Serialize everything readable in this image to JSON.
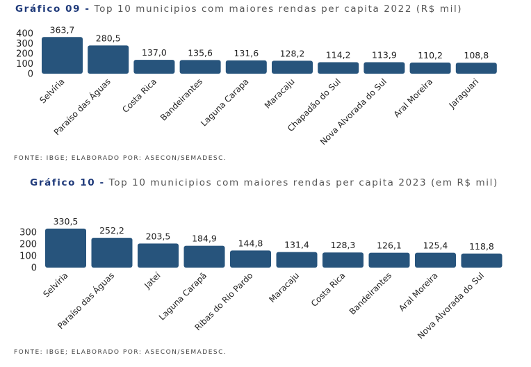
{
  "colors": {
    "bar": "#27547c",
    "title_prefix": "#1f3a7a",
    "text": "#333333"
  },
  "chart_data": [
    {
      "type": "bar",
      "title_prefix": "Gráfico 09 -",
      "title": "Top 10 municipios com maiores rendas per capita 2022 (R$ mil)",
      "categories": [
        "Selvíria",
        "Paraíso das Águas",
        "Costa Rica",
        "Bandeirantes",
        "Laguna Carapa",
        "Maracaju",
        "Chapadão do Sul",
        "Nova Alvorada do Sul",
        "Aral Moreira",
        "Jaraguari"
      ],
      "values": [
        363.7,
        280.5,
        137.0,
        135.6,
        131.6,
        128.2,
        114.2,
        113.9,
        110.2,
        108.8
      ],
      "data_labels": [
        "363,7",
        "280,5",
        "137,0",
        "135,6",
        "131,6",
        "128,2",
        "114,2",
        "113,9",
        "110,2",
        "108,8"
      ],
      "yticks": [
        "0",
        "100",
        "200",
        "300",
        "400"
      ],
      "ylim": [
        0,
        400
      ],
      "grid": false,
      "source": "FONTE: IBGE; ELABORADO POR: ASECON/SEMADESC."
    },
    {
      "type": "bar",
      "title_prefix": "Gráfico 10 -",
      "title": "Top 10 municipios com maiores rendas per capita 2023 (em R$ mil)",
      "categories": [
        "Selvíria",
        "Paraíso das Águas",
        "Jateí",
        "Laguna Carapã",
        "Ribas do Rio Pardo",
        "Maracaju",
        "Costa Rica",
        "Bandeirantes",
        "Aral Moreira",
        "Nova Alvorada do Sul"
      ],
      "values": [
        330.5,
        252.2,
        203.5,
        184.9,
        144.8,
        131.4,
        128.3,
        126.1,
        125.4,
        118.8
      ],
      "data_labels": [
        "330,5",
        "252,2",
        "203,5",
        "184,9",
        "144,8",
        "131,4",
        "128,3",
        "126,1",
        "125,4",
        "118,8"
      ],
      "yticks": [
        "0",
        "100",
        "200",
        "300"
      ],
      "ylim": [
        0,
        300
      ],
      "grid": false,
      "source": "FONTE: IBGE; ELABORADO POR: ASECON/SEMADESC."
    }
  ]
}
